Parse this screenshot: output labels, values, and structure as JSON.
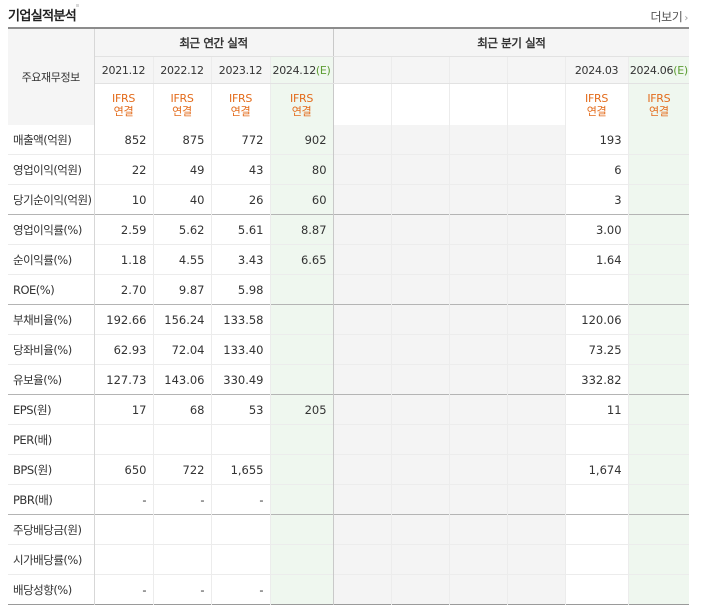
{
  "header": {
    "title": "기업실적분석",
    "more_label": "더보기",
    "more_arrow": "›"
  },
  "table": {
    "corner_label": "주요재무정보",
    "annual_group_label": "최근 연간 실적",
    "quarter_group_label": "최근 분기 실적",
    "annual_periods": [
      "2021.12",
      "2022.12",
      "2023.12",
      "2024.12"
    ],
    "annual_estimate_suffix": "(E)",
    "quarter_periods": [
      "2024.03",
      "2024.06"
    ],
    "quarter_estimate_suffix": "(E)",
    "type_line1": "IFRS",
    "type_line2": "연결",
    "rows": [
      {
        "label": "매출액(억원)",
        "annual": [
          "852",
          "875",
          "772",
          "902"
        ],
        "q4": "193",
        "q5": ""
      },
      {
        "label": "영업이익(억원)",
        "annual": [
          "22",
          "49",
          "43",
          "80"
        ],
        "q4": "6",
        "q5": ""
      },
      {
        "label": "당기순이익(억원)",
        "annual": [
          "10",
          "40",
          "26",
          "60"
        ],
        "q4": "3",
        "q5": ""
      },
      {
        "label": "영업이익률(%)",
        "annual": [
          "2.59",
          "5.62",
          "5.61",
          "8.87"
        ],
        "q4": "3.00",
        "q5": ""
      },
      {
        "label": "순이익률(%)",
        "annual": [
          "1.18",
          "4.55",
          "3.43",
          "6.65"
        ],
        "q4": "1.64",
        "q5": ""
      },
      {
        "label": "ROE(%)",
        "annual": [
          "2.70",
          "9.87",
          "5.98",
          ""
        ],
        "q4": "",
        "q5": ""
      },
      {
        "label": "부채비율(%)",
        "annual": [
          "192.66",
          "156.24",
          "133.58",
          ""
        ],
        "q4": "120.06",
        "q5": ""
      },
      {
        "label": "당좌비율(%)",
        "annual": [
          "62.93",
          "72.04",
          "133.40",
          ""
        ],
        "q4": "73.25",
        "q5": ""
      },
      {
        "label": "유보율(%)",
        "annual": [
          "127.73",
          "143.06",
          "330.49",
          ""
        ],
        "q4": "332.82",
        "q5": ""
      },
      {
        "label": "EPS(원)",
        "annual": [
          "17",
          "68",
          "53",
          "205"
        ],
        "q4": "11",
        "q5": ""
      },
      {
        "label": "PER(배)",
        "annual": [
          "",
          "",
          "",
          ""
        ],
        "q4": "",
        "q5": ""
      },
      {
        "label": "BPS(원)",
        "annual": [
          "650",
          "722",
          "1,655",
          ""
        ],
        "q4": "1,674",
        "q5": ""
      },
      {
        "label": "PBR(배)",
        "annual": [
          "-",
          "-",
          "-",
          ""
        ],
        "q4": "",
        "q5": ""
      },
      {
        "label": "주당배당금(원)",
        "annual": [
          "",
          "",
          "",
          ""
        ],
        "q4": "",
        "q5": ""
      },
      {
        "label": "시가배당률(%)",
        "annual": [
          "",
          "",
          "",
          ""
        ],
        "q4": "",
        "q5": ""
      },
      {
        "label": "배당성향(%)",
        "annual": [
          "-",
          "-",
          "-",
          ""
        ],
        "q4": "",
        "q5": ""
      }
    ]
  }
}
